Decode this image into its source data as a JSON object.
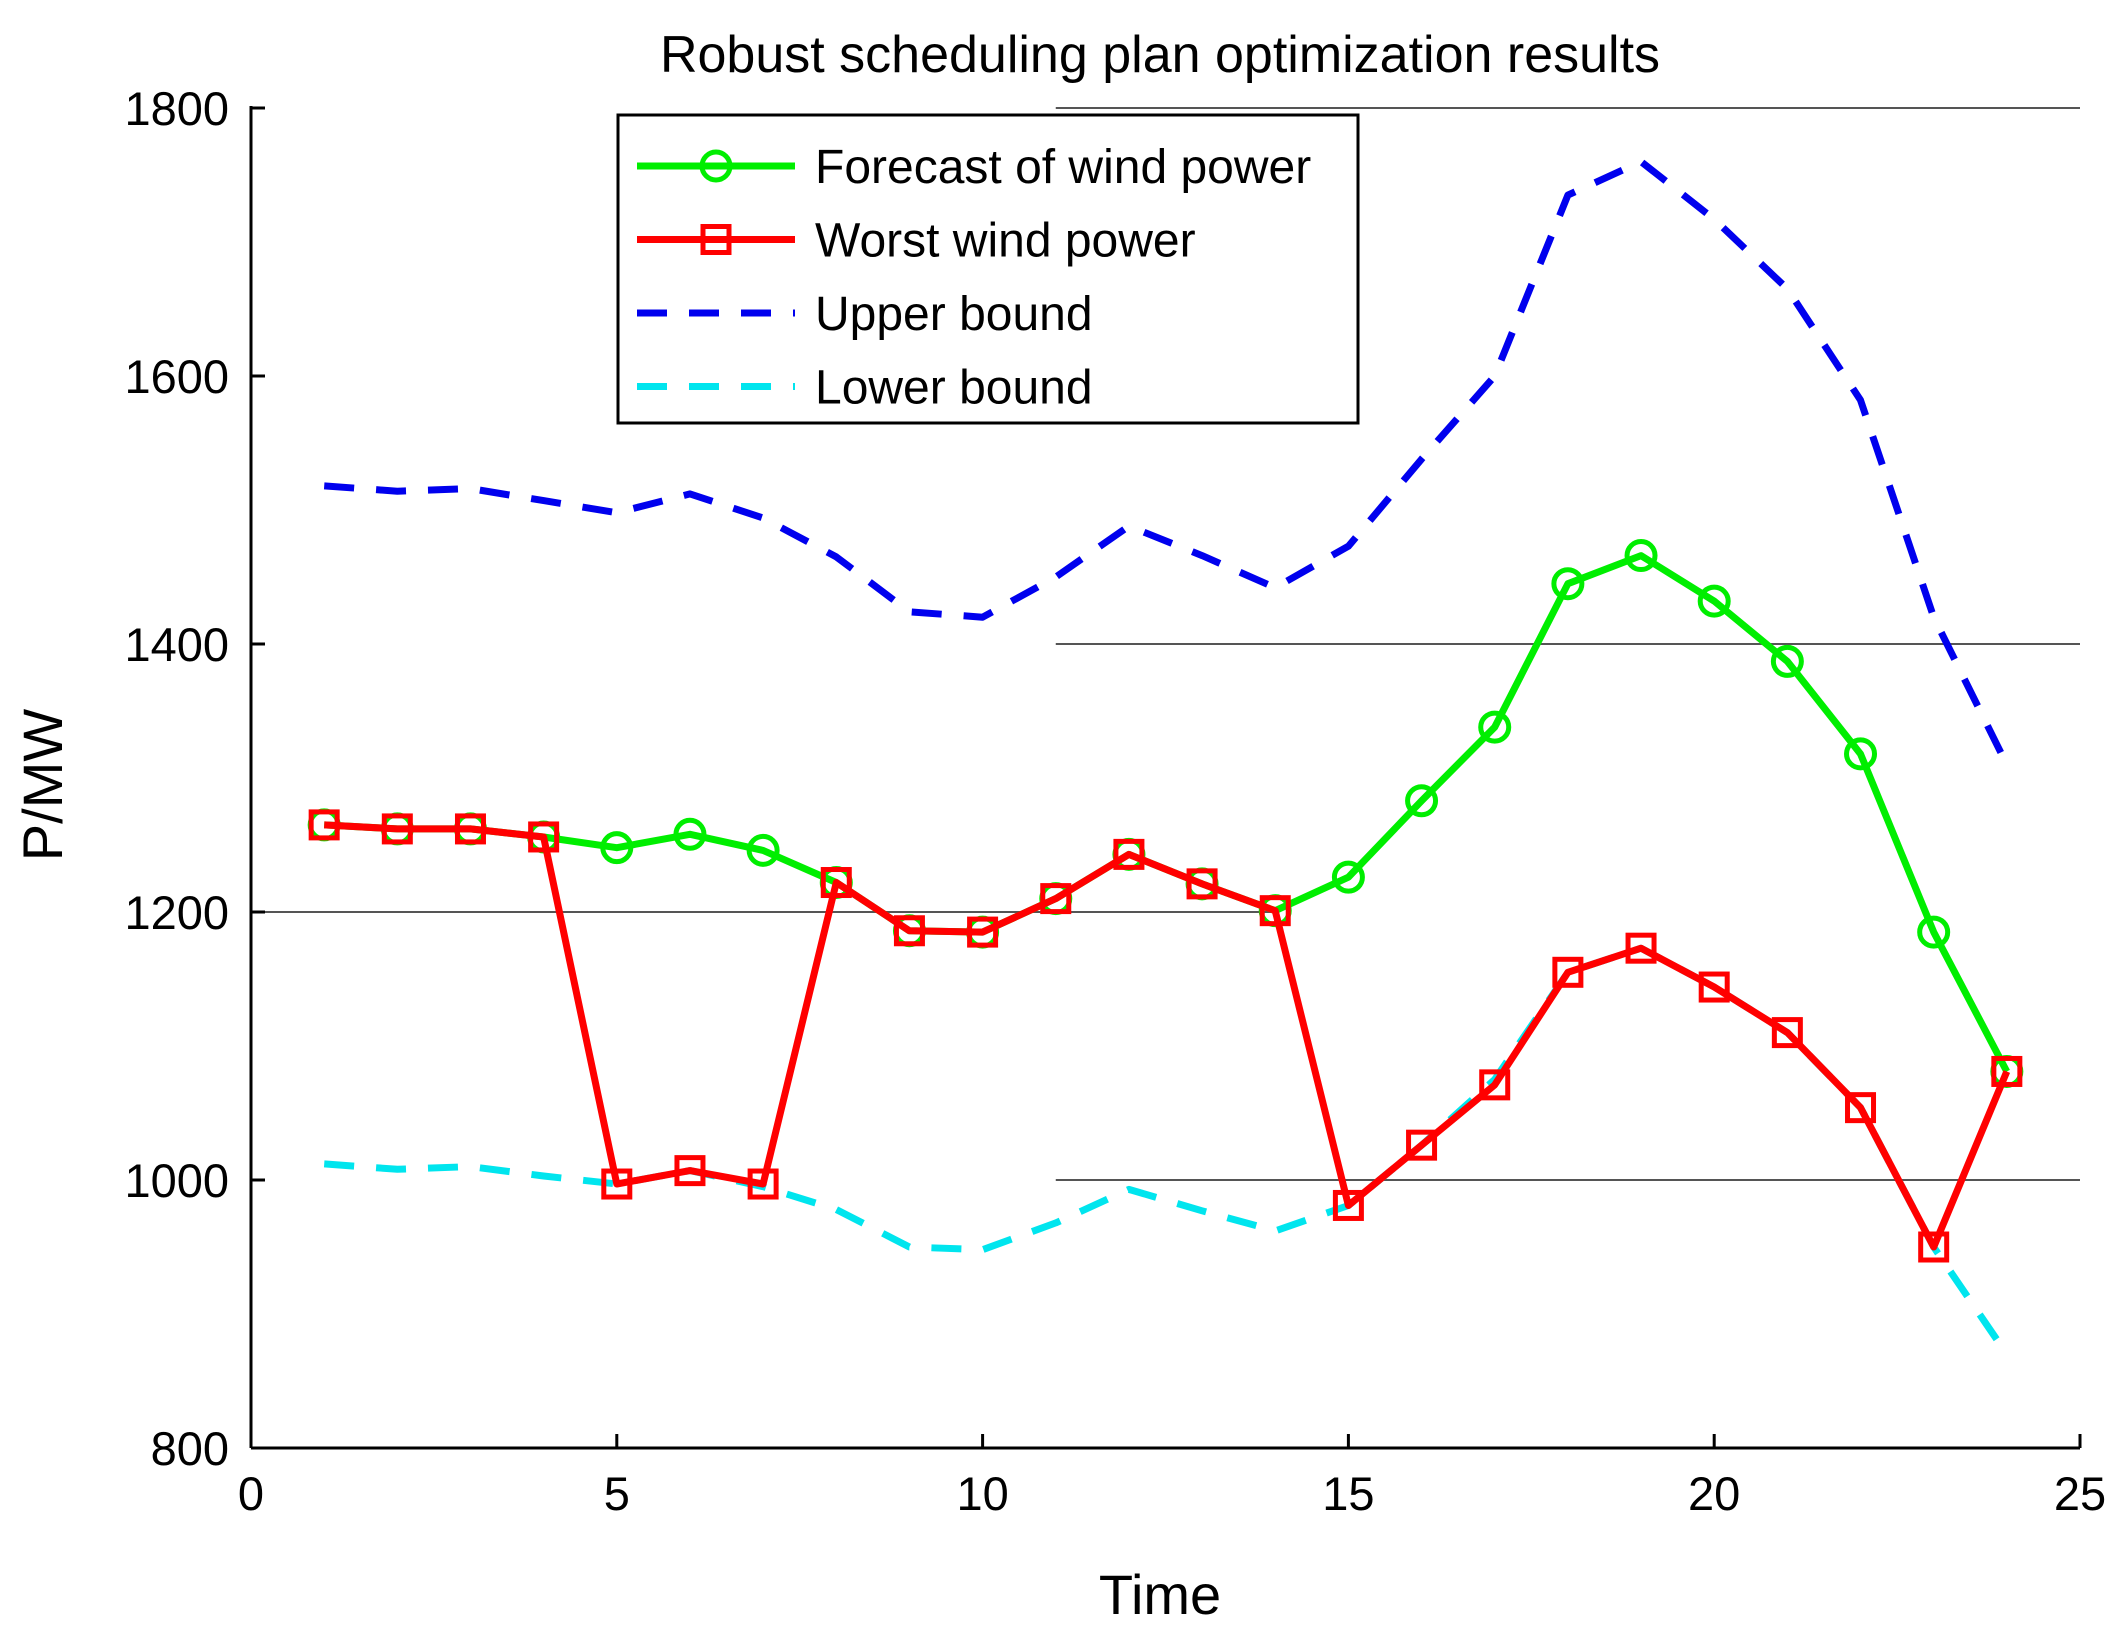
{
  "chart_data": {
    "type": "line",
    "title": "Robust scheduling plan optimization results",
    "xlabel": "Time",
    "ylabel": "P/MW",
    "xlim": [
      0,
      25
    ],
    "ylim": [
      800,
      1800
    ],
    "xticks": [
      0,
      5,
      10,
      15,
      20,
      25
    ],
    "yticks": [
      800,
      1000,
      1200,
      1400,
      1600,
      1800
    ],
    "legend_position": "top-center",
    "reference_lines": [
      {
        "y": 1800,
        "x_from": 11,
        "x_to": 25
      },
      {
        "y": 1400,
        "x_from": 11,
        "x_to": 25
      },
      {
        "y": 1200,
        "x_from": 0,
        "x_to": 14
      },
      {
        "y": 1000,
        "x_from": 11,
        "x_to": 25
      }
    ],
    "series": [
      {
        "name": "Forecast of wind power",
        "color": "#00ee00",
        "style": "solid",
        "marker": "circle",
        "x": [
          1,
          2,
          3,
          4,
          5,
          6,
          7,
          8,
          9,
          10,
          11,
          12,
          13,
          14,
          15,
          16,
          17,
          18,
          19,
          20,
          21,
          22,
          23,
          24
        ],
        "values": [
          1265,
          1262,
          1262,
          1256,
          1248,
          1258,
          1246,
          1222,
          1186,
          1185,
          1210,
          1243,
          1221,
          1201,
          1226,
          1283,
          1338,
          1445,
          1466,
          1432,
          1387,
          1318,
          1185,
          1081
        ]
      },
      {
        "name": "Worst wind power",
        "color": "#ff0000",
        "style": "solid",
        "marker": "square",
        "x": [
          1,
          2,
          3,
          4,
          5,
          6,
          7,
          8,
          9,
          10,
          11,
          12,
          13,
          14,
          15,
          16,
          17,
          18,
          19,
          20,
          21,
          22,
          23,
          24
        ],
        "values": [
          1265,
          1262,
          1262,
          1256,
          997,
          1007,
          997,
          1222,
          1186,
          1185,
          1210,
          1243,
          1221,
          1201,
          981,
          1026,
          1071,
          1155,
          1173,
          1144,
          1110,
          1054,
          950,
          1081
        ]
      },
      {
        "name": "Upper bound",
        "color": "#0000ee",
        "style": "dashed",
        "marker": "none",
        "x": [
          1,
          2,
          3,
          4,
          5,
          6,
          7,
          8,
          9,
          10,
          11,
          12,
          13,
          14,
          15,
          16,
          17,
          18,
          19,
          20,
          21,
          22,
          23,
          24
        ],
        "values": [
          1518,
          1514,
          1516,
          1507,
          1498,
          1512,
          1494,
          1465,
          1424,
          1420,
          1450,
          1488,
          1466,
          1442,
          1473,
          1538,
          1600,
          1735,
          1760,
          1717,
          1665,
          1582,
          1420,
          1310
        ]
      },
      {
        "name": "Lower bound",
        "color": "#00e5ee",
        "style": "dashed",
        "marker": "none",
        "x": [
          1,
          2,
          3,
          4,
          5,
          6,
          7,
          8,
          9,
          10,
          11,
          12,
          13,
          14,
          15,
          16,
          17,
          18,
          19,
          20,
          21,
          22,
          23,
          24
        ],
        "values": [
          1012,
          1008,
          1010,
          1003,
          997,
          1007,
          995,
          978,
          950,
          948,
          968,
          993,
          977,
          962,
          981,
          1026,
          1075,
          1155,
          1173,
          1144,
          1110,
          1054,
          950,
          870
        ]
      }
    ]
  }
}
